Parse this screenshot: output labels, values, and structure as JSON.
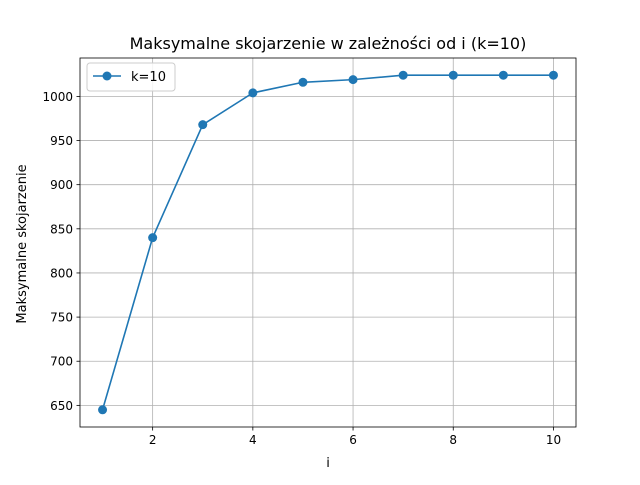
{
  "chart_data": {
    "type": "line",
    "title": "Maksymalne skojarzenie w zależności od i (k=10)",
    "xlabel": "i",
    "ylabel": "Maksymalne skojarzenie",
    "xlim": [
      0.55,
      10.45
    ],
    "ylim": [
      625.5,
      1043.5
    ],
    "x_ticks": [
      2,
      4,
      6,
      8,
      10
    ],
    "y_ticks": [
      650,
      700,
      750,
      800,
      850,
      900,
      950,
      1000
    ],
    "grid": true,
    "legend_position": "upper-left",
    "series": [
      {
        "name": "k=10",
        "color": "#1f77b4",
        "marker": "circle",
        "x": [
          1,
          2,
          3,
          4,
          5,
          6,
          7,
          8,
          9,
          10
        ],
        "y": [
          645,
          840,
          968,
          1004,
          1016,
          1019,
          1024,
          1024,
          1024,
          1024
        ]
      }
    ]
  }
}
